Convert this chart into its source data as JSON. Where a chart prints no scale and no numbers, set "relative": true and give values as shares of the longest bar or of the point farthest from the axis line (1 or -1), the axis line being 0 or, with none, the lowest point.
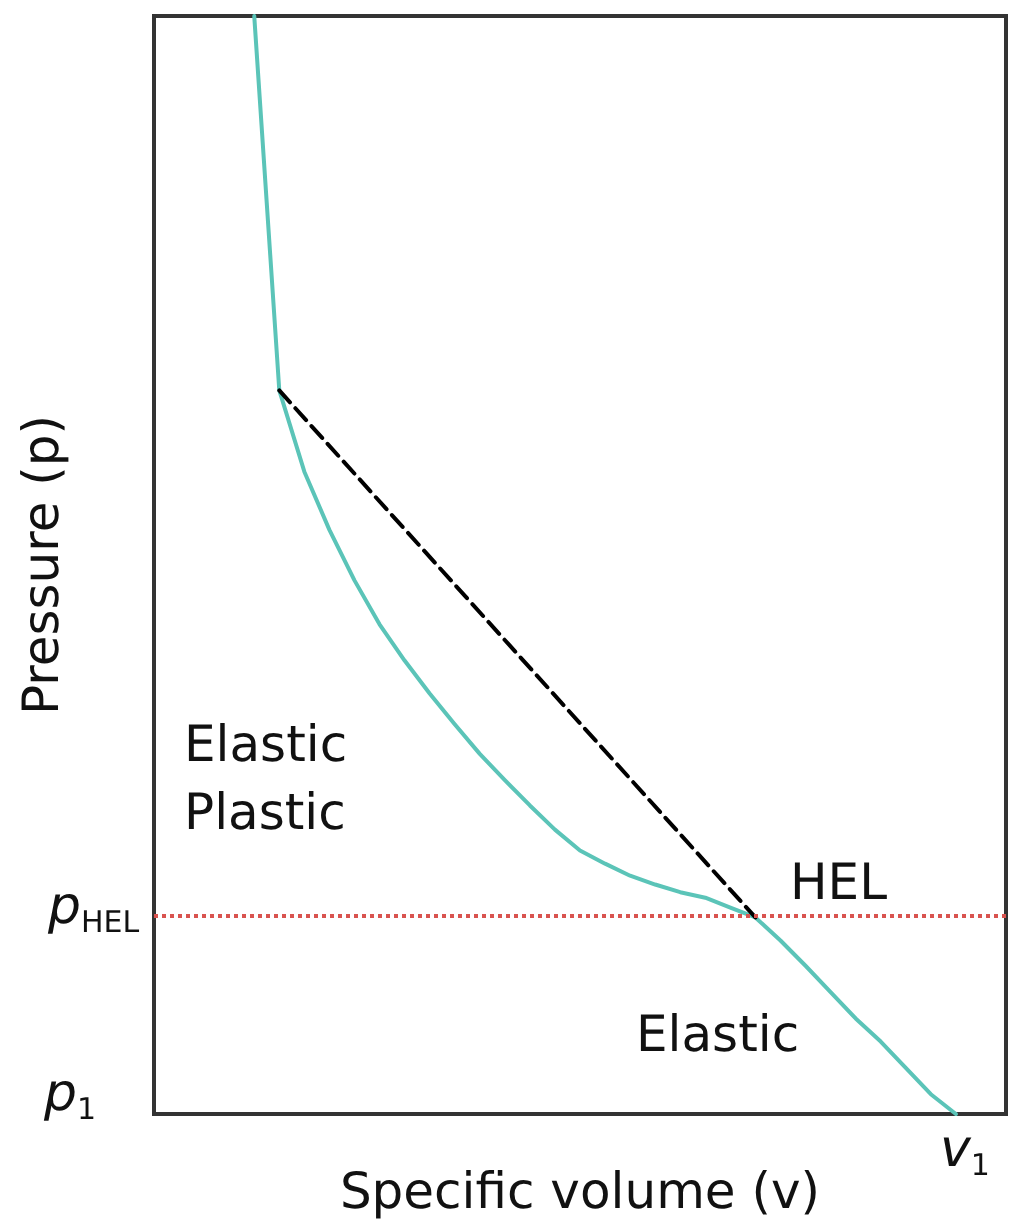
{
  "chart_data": {
    "type": "line",
    "relative": true,
    "xlabel": "Specific volume (v)",
    "ylabel": "Pressure (p)",
    "grid": false,
    "marker": "none",
    "categories": [
      null,
      null,
      null,
      null,
      null,
      null,
      null,
      null,
      null,
      null,
      null,
      null,
      null,
      null,
      null,
      null,
      null,
      null,
      null,
      null,
      null,
      null,
      null,
      null,
      null,
      null,
      null,
      null,
      null,
      null,
      null,
      null,
      null,
      null,
      null
    ],
    "series": [
      {
        "color": "#5bc4b8",
        "line_style": "solid",
        "values": [
          null,
          null,
          null,
          null,
          1,
          0.659,
          0.585,
          0.532,
          0.486,
          0.446,
          0.413,
          0.383,
          0.355,
          0.328,
          0.304,
          0.281,
          0.259,
          0.24,
          0.228,
          0.217,
          0.209,
          0.202,
          0.197,
          0.188,
          0.179,
          0.158,
          0.135,
          0.111,
          0.087,
          0.066,
          0.042,
          0.018,
          0,
          null,
          null
        ]
      },
      {
        "color": "#000000",
        "line_style": "dashed",
        "values": [
          null,
          null,
          null,
          null,
          null,
          0.659,
          null,
          null,
          null,
          null,
          null,
          null,
          null,
          null,
          null,
          null,
          null,
          null,
          null,
          null,
          null,
          null,
          null,
          null,
          0.179,
          null,
          null,
          null,
          null,
          null,
          null,
          null,
          null,
          null,
          null
        ]
      }
    ],
    "ref_lines": [
      {
        "axis": "y",
        "value": 0.179,
        "label": "p$_{HEL}$",
        "color": "#d9534f",
        "line_style": "dotted"
      }
    ],
    "annotations": [
      "HEL",
      "Elastic\nPlastic",
      "Elastic",
      "p$_{1}$",
      "v$_{1}$"
    ]
  }
}
